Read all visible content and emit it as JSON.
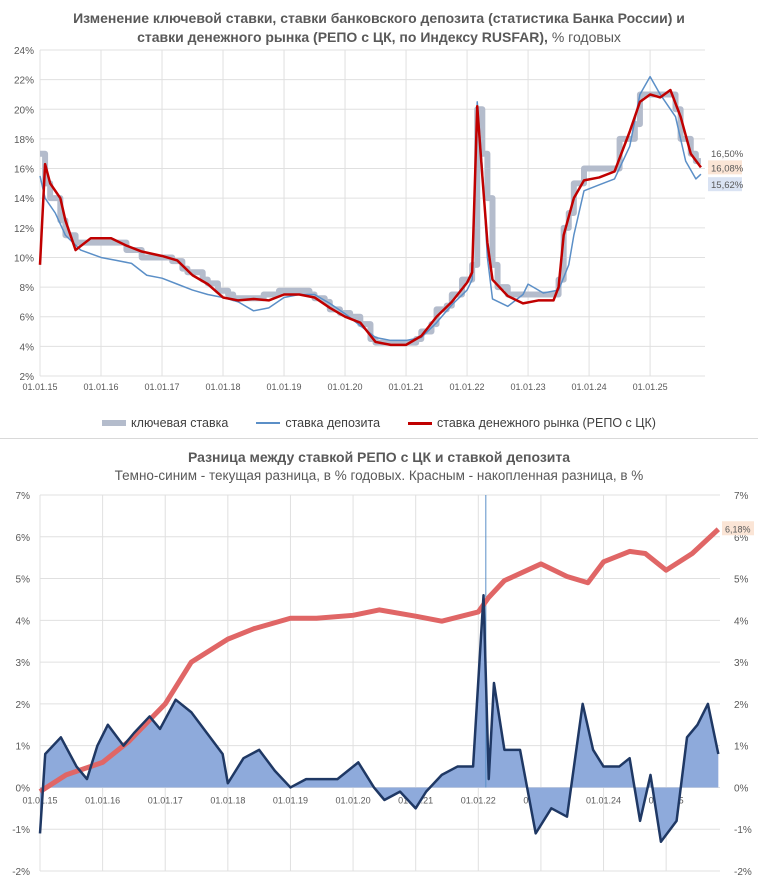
{
  "chart_data": [
    {
      "type": "line",
      "title": "Изменение ключевой ставки, ставки банковского депозита (статистика Банка России) и",
      "title_line2": "ставки денежного рынка (РЕПО с ЦК, по Индексу RUSFAR),",
      "title_unit": "% годовых",
      "ylim": [
        2,
        24
      ],
      "yticks": [
        "2%",
        "4%",
        "6%",
        "8%",
        "10%",
        "12%",
        "14%",
        "16%",
        "18%",
        "20%",
        "22%",
        "24%"
      ],
      "xticks": [
        "01.01.15",
        "01.01.16",
        "01.01.17",
        "01.01.18",
        "01.01.19",
        "01.01.20",
        "01.01.21",
        "01.01.22",
        "01.01.23",
        "01.01.24",
        "01.01.25"
      ],
      "grid": true,
      "legend": "bottom",
      "end_labels": {
        "key": "16,50%",
        "repo": "16,08%",
        "deposit": "15,62%"
      },
      "series": [
        {
          "name": "ключевая ставка",
          "color": "#b4bccc",
          "step": true,
          "points": [
            [
              "2015-01",
              17
            ],
            [
              "2015-02",
              15
            ],
            [
              "2015-03",
              14
            ],
            [
              "2015-05",
              12.5
            ],
            [
              "2015-06",
              11.5
            ],
            [
              "2015-08",
              11
            ],
            [
              "2016-06",
              10.5
            ],
            [
              "2016-09",
              10
            ],
            [
              "2017-03",
              9.75
            ],
            [
              "2017-05",
              9.25
            ],
            [
              "2017-06",
              9
            ],
            [
              "2017-09",
              8.5
            ],
            [
              "2017-10",
              8.25
            ],
            [
              "2017-12",
              7.75
            ],
            [
              "2018-02",
              7.5
            ],
            [
              "2018-03",
              7.25
            ],
            [
              "2018-09",
              7.5
            ],
            [
              "2018-12",
              7.75
            ],
            [
              "2019-06",
              7.5
            ],
            [
              "2019-07",
              7.25
            ],
            [
              "2019-09",
              7
            ],
            [
              "2019-10",
              6.5
            ],
            [
              "2019-12",
              6.25
            ],
            [
              "2020-02",
              6
            ],
            [
              "2020-04",
              5.5
            ],
            [
              "2020-06",
              4.5
            ],
            [
              "2020-07",
              4.25
            ],
            [
              "2021-03",
              4.5
            ],
            [
              "2021-04",
              5
            ],
            [
              "2021-06",
              5.5
            ],
            [
              "2021-07",
              6.5
            ],
            [
              "2021-09",
              6.75
            ],
            [
              "2021-10",
              7.5
            ],
            [
              "2021-12",
              8.5
            ],
            [
              "2022-02",
              9.5
            ],
            [
              "2022-03",
              20
            ],
            [
              "2022-04",
              17
            ],
            [
              "2022-05",
              14
            ],
            [
              "2022-06",
              9.5
            ],
            [
              "2022-07",
              8
            ],
            [
              "2022-09",
              7.5
            ],
            [
              "2023-07",
              8.5
            ],
            [
              "2023-08",
              12
            ],
            [
              "2023-09",
              13
            ],
            [
              "2023-10",
              15
            ],
            [
              "2023-12",
              16
            ],
            [
              "2024-07",
              18
            ],
            [
              "2024-10",
              19
            ],
            [
              "2024-11",
              21
            ],
            [
              "2025-06",
              20
            ],
            [
              "2025-07",
              18
            ],
            [
              "2025-09",
              17
            ],
            [
              "2025-10",
              16.5
            ],
            [
              "2025-11",
              16.5
            ]
          ]
        },
        {
          "name": "ставка депозита",
          "color": "#5b8fc7",
          "points": [
            [
              "2015-01",
              15.5
            ],
            [
              "2015-02",
              14
            ],
            [
              "2015-04",
              13
            ],
            [
              "2015-06",
              11.5
            ],
            [
              "2015-09",
              10.5
            ],
            [
              "2016-01",
              10
            ],
            [
              "2016-04",
              9.8
            ],
            [
              "2016-07",
              9.6
            ],
            [
              "2016-10",
              8.8
            ],
            [
              "2017-01",
              8.6
            ],
            [
              "2017-04",
              8.2
            ],
            [
              "2017-07",
              7.8
            ],
            [
              "2017-10",
              7.5
            ],
            [
              "2018-01",
              7.3
            ],
            [
              "2018-04",
              7.0
            ],
            [
              "2018-07",
              6.4
            ],
            [
              "2018-10",
              6.6
            ],
            [
              "2019-01",
              7.3
            ],
            [
              "2019-04",
              7.5
            ],
            [
              "2019-07",
              7.5
            ],
            [
              "2019-10",
              6.9
            ],
            [
              "2020-01",
              6.2
            ],
            [
              "2020-04",
              5.4
            ],
            [
              "2020-07",
              4.6
            ],
            [
              "2020-10",
              4.4
            ],
            [
              "2021-01",
              4.4
            ],
            [
              "2021-04",
              4.6
            ],
            [
              "2021-07",
              5.6
            ],
            [
              "2021-10",
              6.8
            ],
            [
              "2022-01",
              7.8
            ],
            [
              "2022-02",
              8.5
            ],
            [
              "2022-03",
              20.5
            ],
            [
              "2022-04",
              16
            ],
            [
              "2022-05",
              10
            ],
            [
              "2022-06",
              7.2
            ],
            [
              "2022-09",
              6.7
            ],
            [
              "2022-12",
              7.5
            ],
            [
              "2023-01",
              8.2
            ],
            [
              "2023-04",
              7.6
            ],
            [
              "2023-07",
              7.8
            ],
            [
              "2023-09",
              9.5
            ],
            [
              "2023-10",
              11.5
            ],
            [
              "2023-12",
              14.5
            ],
            [
              "2024-03",
              14.9
            ],
            [
              "2024-06",
              15.3
            ],
            [
              "2024-09",
              17.5
            ],
            [
              "2024-11",
              21
            ],
            [
              "2025-01",
              22.2
            ],
            [
              "2025-03",
              21
            ],
            [
              "2025-06",
              19.5
            ],
            [
              "2025-08",
              16.5
            ],
            [
              "2025-10",
              15.3
            ],
            [
              "2025-11",
              15.62
            ]
          ]
        },
        {
          "name": "ставка денежного рынка (РЕПО с ЦК)",
          "color": "#c00000",
          "points": [
            [
              "2015-01",
              9.5
            ],
            [
              "2015-02",
              16.3
            ],
            [
              "2015-03",
              15
            ],
            [
              "2015-05",
              14
            ],
            [
              "2015-06",
              12.5
            ],
            [
              "2015-08",
              10.5
            ],
            [
              "2015-11",
              11.3
            ],
            [
              "2016-03",
              11.3
            ],
            [
              "2016-06",
              10.8
            ],
            [
              "2016-09",
              10.4
            ],
            [
              "2017-01",
              10.1
            ],
            [
              "2017-04",
              9.8
            ],
            [
              "2017-07",
              8.8
            ],
            [
              "2017-10",
              8.2
            ],
            [
              "2018-01",
              7.3
            ],
            [
              "2018-04",
              7.1
            ],
            [
              "2018-07",
              7.2
            ],
            [
              "2018-10",
              7.1
            ],
            [
              "2019-01",
              7.5
            ],
            [
              "2019-04",
              7.5
            ],
            [
              "2019-07",
              7.3
            ],
            [
              "2019-10",
              6.6
            ],
            [
              "2020-01",
              6.0
            ],
            [
              "2020-04",
              5.6
            ],
            [
              "2020-07",
              4.3
            ],
            [
              "2020-10",
              4.1
            ],
            [
              "2021-01",
              4.1
            ],
            [
              "2021-04",
              4.7
            ],
            [
              "2021-07",
              6.0
            ],
            [
              "2021-10",
              7.0
            ],
            [
              "2022-01",
              8.3
            ],
            [
              "2022-02",
              9.0
            ],
            [
              "2022-03",
              20.2
            ],
            [
              "2022-04",
              15.5
            ],
            [
              "2022-05",
              11
            ],
            [
              "2022-06",
              8.5
            ],
            [
              "2022-09",
              7.4
            ],
            [
              "2022-12",
              6.9
            ],
            [
              "2023-03",
              7.1
            ],
            [
              "2023-06",
              7.1
            ],
            [
              "2023-07",
              8
            ],
            [
              "2023-08",
              11.5
            ],
            [
              "2023-10",
              14
            ],
            [
              "2023-12",
              15.2
            ],
            [
              "2024-03",
              15.4
            ],
            [
              "2024-06",
              15.8
            ],
            [
              "2024-09",
              18.5
            ],
            [
              "2024-11",
              20.5
            ],
            [
              "2025-01",
              21
            ],
            [
              "2025-03",
              20.8
            ],
            [
              "2025-05",
              21.3
            ],
            [
              "2025-07",
              19.5
            ],
            [
              "2025-09",
              17
            ],
            [
              "2025-11",
              16.08
            ]
          ]
        }
      ]
    },
    {
      "type": "line",
      "title": "Разница между ставкой РЕПО с ЦК и ставкой депозита",
      "subtitle": "Темно-синим - текущая разница, в % годовых. Красным - накопленная разница, в %",
      "ylim": [
        -2,
        7
      ],
      "yticks": [
        "-2%",
        "-1%",
        "0%",
        "1%",
        "2%",
        "3%",
        "4%",
        "5%",
        "6%",
        "7%"
      ],
      "xticks": [
        "01.01.15",
        "01.01.16",
        "01.01.17",
        "01.01.18",
        "01.01.19",
        "01.01.20",
        "01.01.21",
        "01.01.22",
        "01.01.23",
        "01.01.24",
        "01.01.25"
      ],
      "grid": true,
      "end_label": "6,18%",
      "series": [
        {
          "color": "#1f3864",
          "fill": "#8eaadb",
          "points": [
            [
              "2015-01",
              -1.1
            ],
            [
              "2015-02",
              0.8
            ],
            [
              "2015-05",
              1.2
            ],
            [
              "2015-08",
              0.5
            ],
            [
              "2015-10",
              0.2
            ],
            [
              "2015-12",
              1.0
            ],
            [
              "2016-02",
              1.5
            ],
            [
              "2016-05",
              1.0
            ],
            [
              "2016-07",
              1.3
            ],
            [
              "2016-10",
              1.7
            ],
            [
              "2016-12",
              1.4
            ],
            [
              "2017-03",
              2.1
            ],
            [
              "2017-06",
              1.8
            ],
            [
              "2017-09",
              1.3
            ],
            [
              "2017-12",
              0.8
            ],
            [
              "2018-01",
              0.1
            ],
            [
              "2018-04",
              0.7
            ],
            [
              "2018-07",
              0.9
            ],
            [
              "2018-10",
              0.4
            ],
            [
              "2019-01",
              0.0
            ],
            [
              "2019-04",
              0.2
            ],
            [
              "2019-07",
              0.2
            ],
            [
              "2019-10",
              0.2
            ],
            [
              "2020-02",
              0.6
            ],
            [
              "2020-05",
              0.0
            ],
            [
              "2020-07",
              -0.3
            ],
            [
              "2020-10",
              -0.1
            ],
            [
              "2021-01",
              -0.5
            ],
            [
              "2021-03",
              -0.1
            ],
            [
              "2021-06",
              0.3
            ],
            [
              "2021-09",
              0.5
            ],
            [
              "2021-12",
              0.5
            ],
            [
              "2022-02",
              4.6
            ],
            [
              "2022-03",
              0.2
            ],
            [
              "2022-04",
              2.5
            ],
            [
              "2022-06",
              0.9
            ],
            [
              "2022-09",
              0.9
            ],
            [
              "2022-12",
              -1.1
            ],
            [
              "2023-03",
              -0.5
            ],
            [
              "2023-06",
              -0.7
            ],
            [
              "2023-09",
              2.0
            ],
            [
              "2023-11",
              0.9
            ],
            [
              "2024-01",
              0.5
            ],
            [
              "2024-04",
              0.5
            ],
            [
              "2024-06",
              0.7
            ],
            [
              "2024-08",
              -0.8
            ],
            [
              "2024-10",
              0.3
            ],
            [
              "2024-12",
              -1.3
            ],
            [
              "2025-03",
              -0.8
            ],
            [
              "2025-05",
              1.2
            ],
            [
              "2025-07",
              1.5
            ],
            [
              "2025-09",
              2.0
            ],
            [
              "2025-11",
              0.8
            ]
          ]
        },
        {
          "color": "#e06666",
          "points": [
            [
              "2015-01",
              -0.1
            ],
            [
              "2015-06",
              0.3
            ],
            [
              "2016-01",
              0.6
            ],
            [
              "2016-06",
              1.1
            ],
            [
              "2017-01",
              2.0
            ],
            [
              "2017-06",
              3.0
            ],
            [
              "2018-01",
              3.55
            ],
            [
              "2018-06",
              3.8
            ],
            [
              "2019-01",
              4.05
            ],
            [
              "2019-06",
              4.05
            ],
            [
              "2020-01",
              4.12
            ],
            [
              "2020-06",
              4.25
            ],
            [
              "2021-01",
              4.1
            ],
            [
              "2021-06",
              3.98
            ],
            [
              "2022-01",
              4.2
            ],
            [
              "2022-03",
              4.55
            ],
            [
              "2022-06",
              4.95
            ],
            [
              "2023-01",
              5.35
            ],
            [
              "2023-06",
              5.05
            ],
            [
              "2023-10",
              4.9
            ],
            [
              "2024-01",
              5.4
            ],
            [
              "2024-06",
              5.65
            ],
            [
              "2024-09",
              5.6
            ],
            [
              "2025-01",
              5.2
            ],
            [
              "2025-06",
              5.6
            ],
            [
              "2025-11",
              6.18
            ]
          ]
        }
      ]
    }
  ]
}
